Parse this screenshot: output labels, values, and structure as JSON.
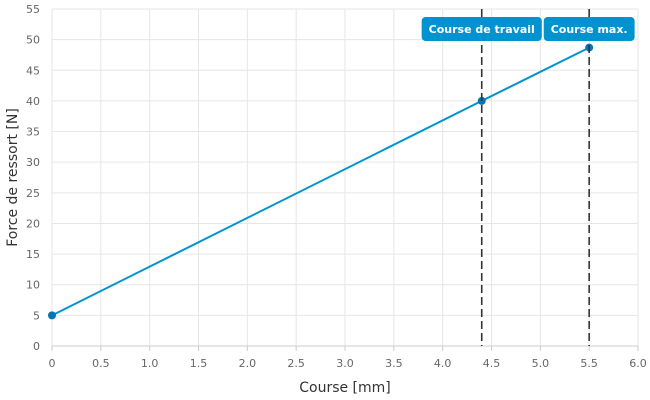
{
  "chart_data": {
    "type": "line",
    "xlabel": "Course [mm]",
    "ylabel": "Force de ressort [N]",
    "xlim": [
      0,
      6
    ],
    "ylim": [
      0,
      55
    ],
    "xticks": [
      "0",
      "0.5",
      "1.0",
      "1.5",
      "2.0",
      "2.5",
      "3.0",
      "3.5",
      "4.0",
      "4.5",
      "5.0",
      "5.5",
      "6.0"
    ],
    "yticks": [
      "0",
      "5",
      "10",
      "15",
      "20",
      "25",
      "30",
      "35",
      "40",
      "45",
      "50",
      "55"
    ],
    "grid": true,
    "series": [
      {
        "x": [
          0,
          4.4,
          5.5
        ],
        "y": [
          5,
          40,
          48.7
        ],
        "color": "#0093d0"
      }
    ],
    "markers": [
      {
        "x": 4.4,
        "label": "Course de travail"
      },
      {
        "x": 5.5,
        "label": "Course max."
      }
    ],
    "marker_color": "#0093d0"
  }
}
